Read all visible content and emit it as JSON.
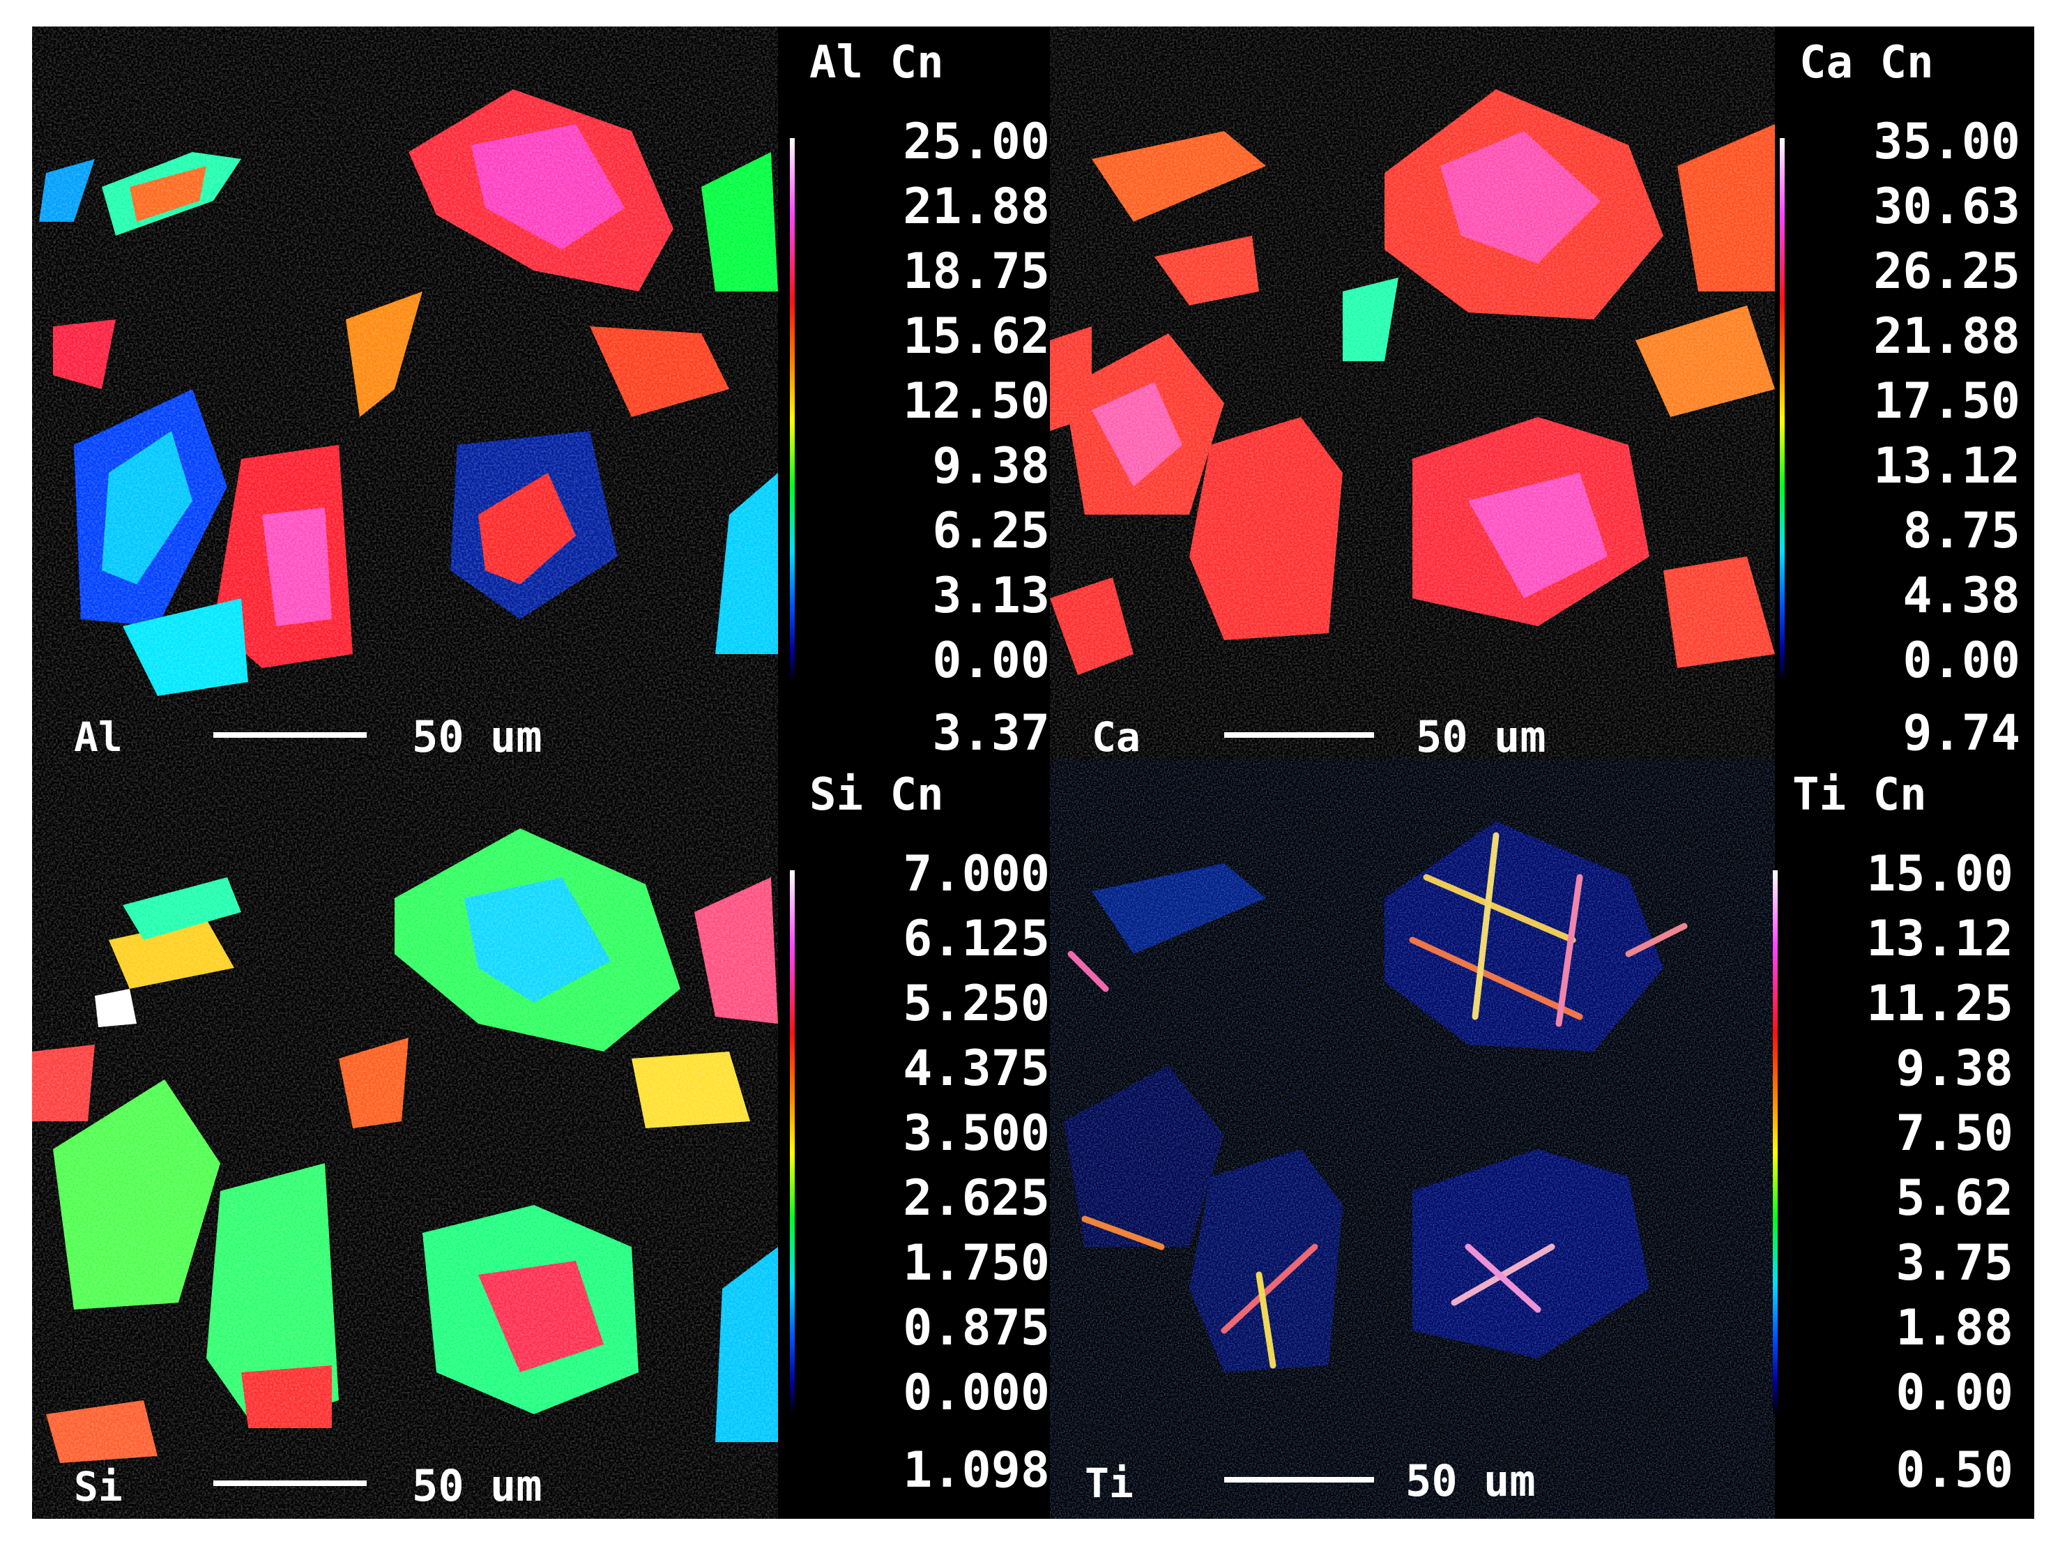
{
  "panels": [
    {
      "element": "Al",
      "title": "Al Cn",
      "scale_text": "50 um",
      "ticks": [
        "25.00",
        "21.88",
        "18.75",
        "15.62",
        "12.50",
        "9.38",
        "6.25",
        "3.13",
        "0.00"
      ],
      "footer_value": "3.37"
    },
    {
      "element": "Ca",
      "title": "Ca Cn",
      "scale_text": "50 um",
      "ticks": [
        "35.00",
        "30.63",
        "26.25",
        "21.88",
        "17.50",
        "13.12",
        "8.75",
        "4.38",
        "0.00"
      ],
      "footer_value": "9.74"
    },
    {
      "element": "Si",
      "title": "Si Cn",
      "scale_text": "50 um",
      "ticks": [
        "7.000",
        "6.125",
        "5.250",
        "4.375",
        "3.500",
        "2.625",
        "1.750",
        "0.875",
        "0.000"
      ],
      "footer_value": "1.098"
    },
    {
      "element": "Ti",
      "title": "Ti Cn",
      "scale_text": "50 um",
      "ticks": [
        "15.00",
        "13.12",
        "11.25",
        "9.38",
        "7.50",
        "5.62",
        "3.75",
        "1.88",
        "0.00"
      ],
      "footer_value": "0.50"
    }
  ],
  "colormap": [
    "#000000",
    "#0000a0",
    "#0050ff",
    "#00e0ff",
    "#00ff20",
    "#ffff00",
    "#ff8800",
    "#ff1010",
    "#ff44ff",
    "#ffffff"
  ]
}
